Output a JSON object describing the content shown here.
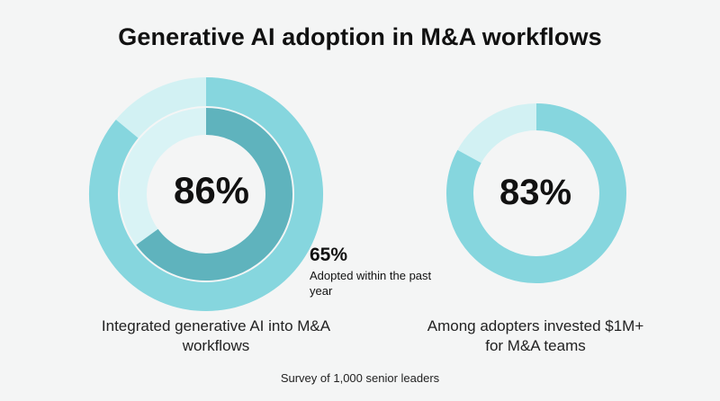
{
  "title": "Generative AI adoption in M&A workflows",
  "colors": {
    "outer_ring": "#86d6de",
    "outer_ring_remainder": "#d2f1f3",
    "inner_ring": "#5fb3bd",
    "inner_ring_remainder": "#d9f3f5",
    "ring2": "#86d6de",
    "ring2_remainder": "#d2f1f3"
  },
  "chart_data": [
    {
      "type": "pie",
      "subtype": "nested-donut",
      "series": [
        {
          "value": 86,
          "label": "86%",
          "description": "Integrated generative AI into M&A workflows"
        },
        {
          "value": 65,
          "label": "65%",
          "description": "Adopted within the past year"
        }
      ],
      "center_label": "86%",
      "side_value": "65%",
      "side_label": "Adopted within the past year",
      "caption": "Integrated generative AI into M&A workflows"
    },
    {
      "type": "pie",
      "subtype": "donut",
      "series": [
        {
          "value": 83,
          "label": "83%",
          "description": "Among adopters invested $1M+ for M&A teams"
        }
      ],
      "center_label": "83%",
      "caption": "Among adopters invested $1M+ for M&A teams"
    }
  ],
  "source": "Survey of 1,000 senior leaders"
}
